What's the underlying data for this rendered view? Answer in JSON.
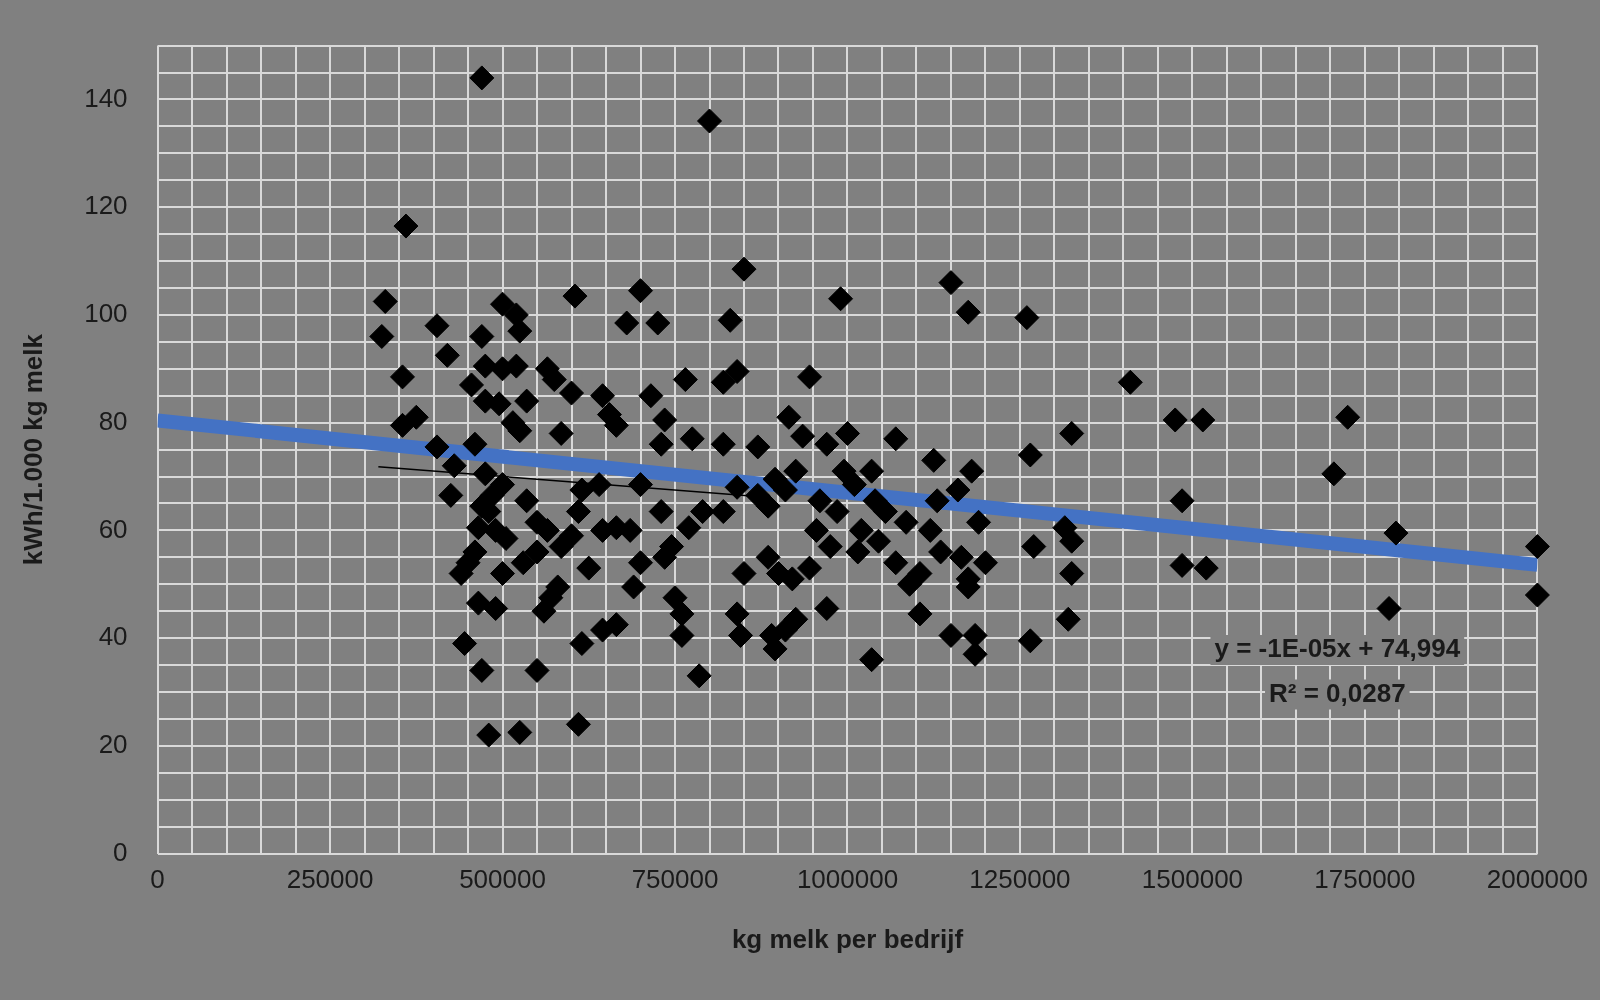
{
  "chart_data": {
    "type": "scatter",
    "xlabel": "kg melk per bedrijf",
    "ylabel": "kWh/1.000 kg melk",
    "xlim": [
      0,
      2000000
    ],
    "ylim": [
      0,
      150
    ],
    "xticks": [
      0,
      {
        "value": 50000,
        "label": null
      },
      {
        "value": 100000,
        "label": null
      },
      {
        "value": 150000,
        "label": null
      },
      {
        "value": 200000,
        "label": null
      },
      250000,
      {
        "value": 300000,
        "label": null
      },
      {
        "value": 350000,
        "label": null
      },
      {
        "value": 400000,
        "label": null
      },
      {
        "value": 450000,
        "label": null
      },
      500000,
      {
        "value": 550000,
        "label": null
      },
      {
        "value": 600000,
        "label": null
      },
      {
        "value": 650000,
        "label": null
      },
      {
        "value": 700000,
        "label": null
      },
      750000,
      {
        "value": 800000,
        "label": null
      },
      {
        "value": 850000,
        "label": null
      },
      {
        "value": 900000,
        "label": null
      },
      {
        "value": 950000,
        "label": null
      },
      1000000,
      {
        "value": 1050000,
        "label": null
      },
      {
        "value": 1100000,
        "label": null
      },
      {
        "value": 1150000,
        "label": null
      },
      {
        "value": 1200000,
        "label": null
      },
      1250000,
      {
        "value": 1300000,
        "label": null
      },
      {
        "value": 1350000,
        "label": null
      },
      {
        "value": 1400000,
        "label": null
      },
      {
        "value": 1450000,
        "label": null
      },
      1500000,
      {
        "value": 1550000,
        "label": null
      },
      {
        "value": 1600000,
        "label": null
      },
      {
        "value": 1650000,
        "label": null
      },
      {
        "value": 1700000,
        "label": null
      },
      1750000,
      {
        "value": 1800000,
        "label": null
      },
      {
        "value": 1850000,
        "label": null
      },
      {
        "value": 1900000,
        "label": null
      },
      {
        "value": 1950000,
        "label": null
      },
      2000000
    ],
    "yticks": [
      0,
      {
        "value": 5,
        "label": null
      },
      {
        "value": 10,
        "label": null
      },
      {
        "value": 15,
        "label": null
      },
      20,
      {
        "value": 25,
        "label": null
      },
      {
        "value": 30,
        "label": null
      },
      {
        "value": 35,
        "label": null
      },
      40,
      {
        "value": 45,
        "label": null
      },
      {
        "value": 50,
        "label": null
      },
      {
        "value": 55,
        "label": null
      },
      60,
      {
        "value": 65,
        "label": null
      },
      {
        "value": 70,
        "label": null
      },
      {
        "value": 75,
        "label": null
      },
      80,
      {
        "value": 85,
        "label": null
      },
      {
        "value": 90,
        "label": null
      },
      {
        "value": 95,
        "label": null
      },
      100,
      {
        "value": 105,
        "label": null
      },
      {
        "value": 110,
        "label": null
      },
      {
        "value": 115,
        "label": null
      },
      120,
      {
        "value": 125,
        "label": null
      },
      {
        "value": 130,
        "label": null
      },
      {
        "value": 135,
        "label": null
      },
      140,
      {
        "value": 145,
        "label": null
      },
      {
        "value": 150,
        "label": null
      }
    ],
    "grid": true,
    "legend": false,
    "annotations": [
      "y = -1E-05x + 74,994",
      "R² = 0,0287"
    ],
    "series": [
      {
        "type": "scatter",
        "color": "#000000",
        "marker": "diamond",
        "x": [
          470000,
          800000,
          360000,
          330000,
          325000,
          355000,
          375000,
          355000,
          405000,
          420000,
          470000,
          455000,
          500000,
          520000,
          525000,
          475000,
          500000,
          520000,
          475000,
          495000,
          535000,
          515000,
          525000,
          460000,
          405000,
          430000,
          425000,
          565000,
          575000,
          600000,
          585000,
          605000,
          645000,
          655000,
          665000,
          700000,
          680000,
          725000,
          715000,
          735000,
          730000,
          765000,
          775000,
          850000,
          830000,
          820000,
          840000,
          820000,
          870000,
          945000,
          915000,
          935000,
          990000,
          970000,
          1000000,
          1070000,
          1150000,
          1175000,
          1125000,
          1180000,
          1260000,
          1265000,
          1325000,
          1410000,
          1475000,
          1515000,
          1485000,
          1485000,
          1520000,
          1705000,
          1725000,
          1795000,
          1785000,
          2000000,
          2000000,
          440000,
          450000,
          460000,
          465000,
          470000,
          475000,
          485000,
          500000,
          480000,
          490000,
          505000,
          500000,
          445000,
          470000,
          465000,
          490000,
          480000,
          525000,
          550000,
          560000,
          570000,
          580000,
          530000,
          550000,
          535000,
          550000,
          565000,
          585000,
          600000,
          610000,
          615000,
          625000,
          640000,
          645000,
          665000,
          685000,
          700000,
          690000,
          645000,
          665000,
          615000,
          610000,
          700000,
          730000,
          745000,
          735000,
          750000,
          760000,
          760000,
          785000,
          770000,
          790000,
          820000,
          840000,
          870000,
          850000,
          840000,
          845000,
          885000,
          895000,
          910000,
          925000,
          955000,
          960000,
          885000,
          900000,
          920000,
          890000,
          895000,
          910000,
          925000,
          945000,
          970000,
          975000,
          985000,
          995000,
          1010000,
          1020000,
          1015000,
          1040000,
          1045000,
          1035000,
          1035000,
          1055000,
          1070000,
          1085000,
          1090000,
          1105000,
          1105000,
          1120000,
          1130000,
          1135000,
          1150000,
          1160000,
          1165000,
          1175000,
          1175000,
          1185000,
          1185000,
          1190000,
          1200000,
          1265000,
          1270000,
          1320000,
          1325000,
          1325000,
          1315000
        ],
        "values": [
          144,
          136,
          116.5,
          102.5,
          96,
          88.5,
          81,
          79.5,
          98,
          92.5,
          96,
          87,
          102,
          100,
          97,
          90.5,
          90,
          90.5,
          84,
          83.5,
          84,
          80,
          78.5,
          76,
          75.5,
          72,
          66.5,
          90,
          88,
          85.5,
          78,
          103.5,
          85,
          81.5,
          79.5,
          104.5,
          98.5,
          98.5,
          85,
          80.5,
          76,
          88,
          77,
          108.5,
          99,
          87.5,
          89.5,
          76,
          75.5,
          88.5,
          81,
          77.5,
          103,
          76,
          78,
          77,
          106,
          100.5,
          73,
          71,
          99.5,
          74,
          78,
          87.5,
          80.5,
          80.5,
          65.5,
          53.5,
          53,
          70.5,
          81,
          59.5,
          45.5,
          57,
          48,
          52,
          54,
          56,
          60.5,
          64.5,
          70.5,
          66.5,
          68.5,
          63.5,
          60,
          58.5,
          52,
          39,
          34,
          46.5,
          45.5,
          22,
          22.5,
          34,
          45,
          47.5,
          49.5,
          54,
          56,
          65.5,
          61.5,
          60,
          57,
          59,
          63.5,
          67.5,
          53,
          68.5,
          60,
          60.5,
          60,
          54,
          49.5,
          41.5,
          42.5,
          39,
          24,
          68.5,
          63.5,
          57,
          55,
          47.5,
          44.5,
          40.5,
          33,
          60.5,
          63.5,
          63.5,
          68,
          66.5,
          52,
          44.5,
          40.5,
          64.5,
          69.5,
          67.5,
          71,
          60,
          65.5,
          55,
          52,
          51,
          40.5,
          38,
          41.5,
          43.5,
          53,
          45.5,
          57,
          63.5,
          71,
          68.5,
          60,
          56,
          65.5,
          58,
          36,
          71,
          63.5,
          54,
          61.5,
          50,
          44.5,
          52,
          60,
          65.5,
          56,
          40.5,
          67.5,
          55,
          51,
          49.5,
          40.5,
          37,
          61.5,
          54,
          39.5,
          57,
          43.5,
          52,
          58,
          60.5
        ]
      },
      {
        "type": "line",
        "color": "#000000",
        "x": [
          320000,
          880000
        ],
        "values": [
          71.8,
          66.2
        ]
      },
      {
        "type": "line",
        "color": "#4472c4",
        "x": [
          0,
          2000000
        ],
        "values": [
          80.4,
          53.6
        ]
      }
    ]
  }
}
